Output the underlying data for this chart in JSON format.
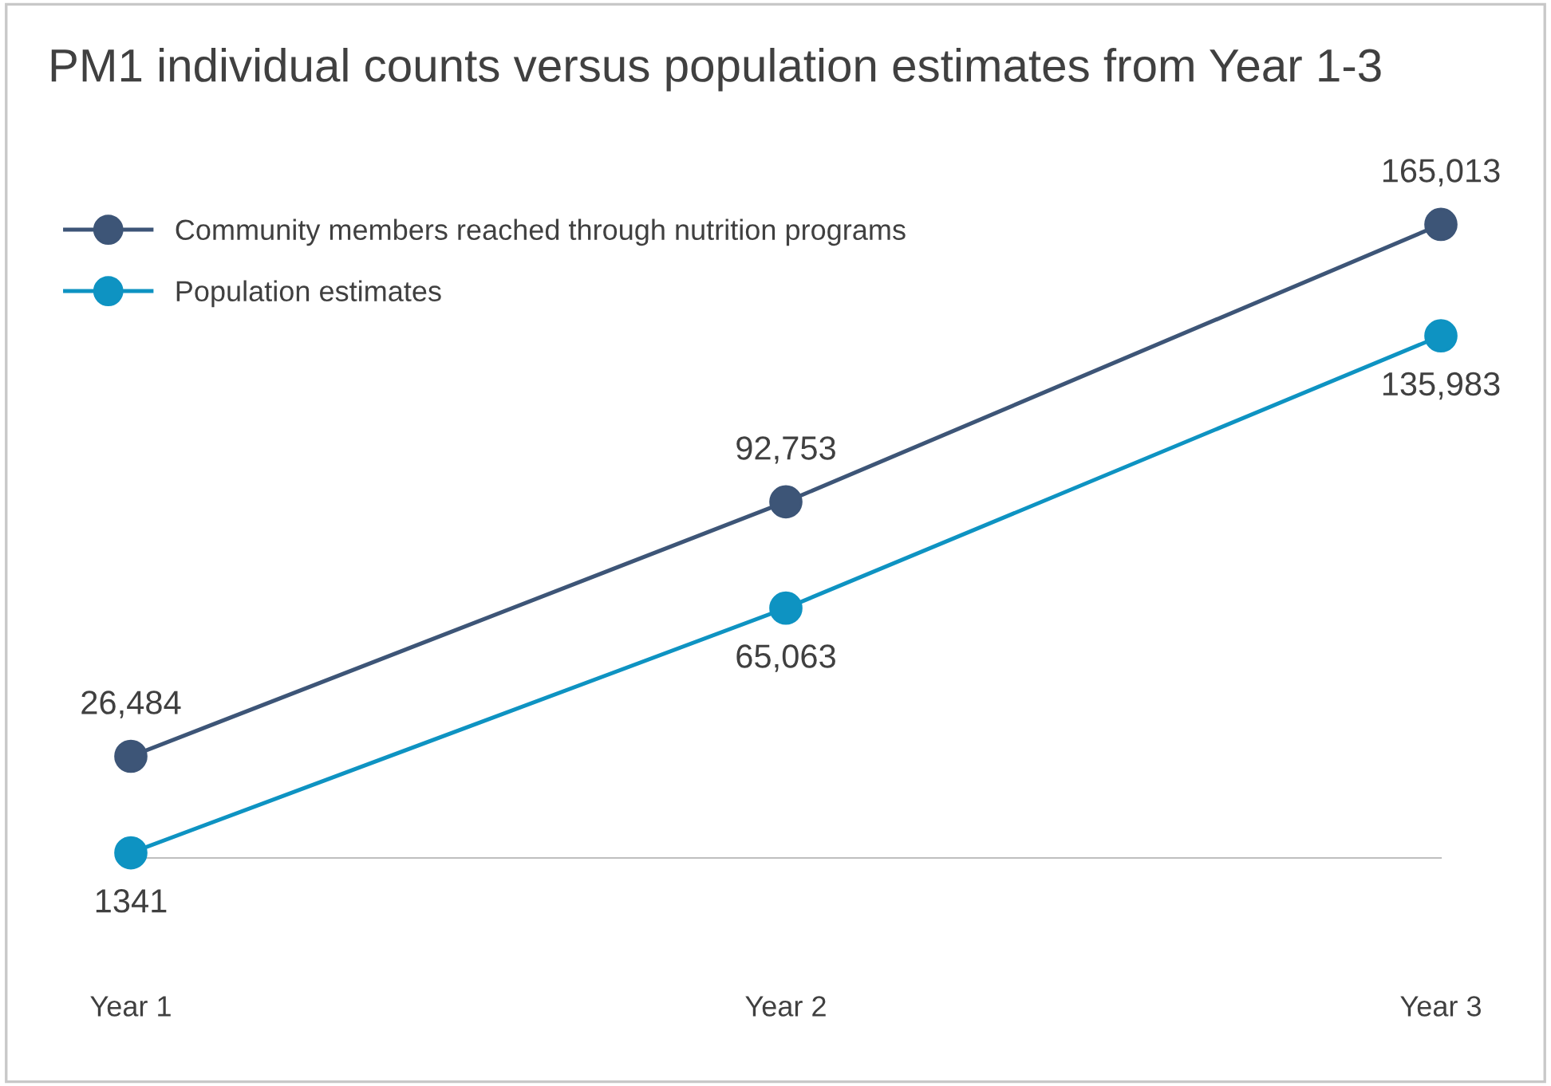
{
  "chart_data": {
    "type": "line",
    "title": "PM1 individual counts versus population estimates from Year 1-3",
    "categories": [
      "Year 1",
      "Year 2",
      "Year 3"
    ],
    "series": [
      {
        "name": "Community members reached through nutrition programs",
        "color": "#3d5577",
        "values": [
          26484,
          92753,
          165013
        ],
        "value_labels": [
          "26,484",
          "92,753",
          "165,013"
        ]
      },
      {
        "name": "Population estimates",
        "color": "#0e93c2",
        "values": [
          1341,
          65063,
          135983
        ],
        "value_labels": [
          "1341",
          "65,063",
          "135,983"
        ]
      }
    ],
    "grid": false,
    "legend": "top left",
    "marker": "circle",
    "line_style": "solid"
  }
}
